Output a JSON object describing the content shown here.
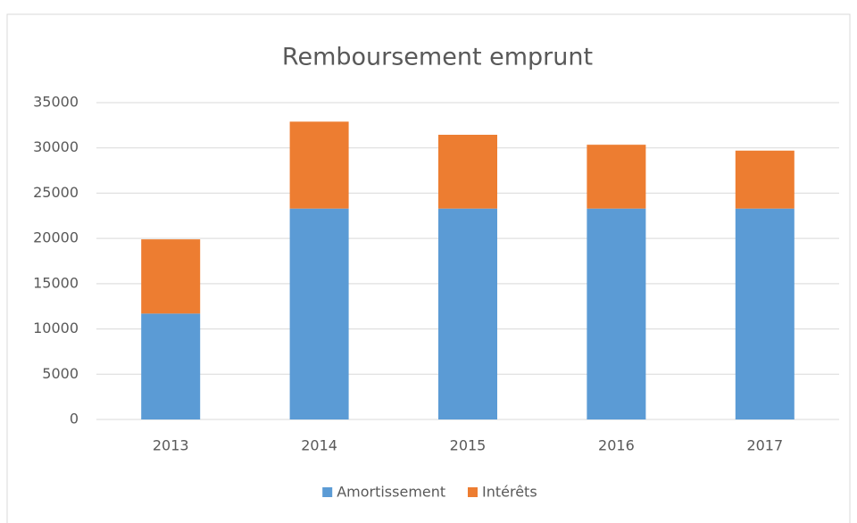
{
  "chart_data": {
    "type": "stacked_bar",
    "title": "Remboursement emprunt",
    "categories": [
      "2013",
      "2014",
      "2015",
      "2016",
      "2017"
    ],
    "series": [
      {
        "name": "Amortissement",
        "color": "#5b9bd5",
        "values": [
          11700,
          23300,
          23300,
          23300,
          23300
        ]
      },
      {
        "name": "Intérêts",
        "color": "#ed7d31",
        "values": [
          8200,
          9600,
          8150,
          7050,
          6400
        ]
      }
    ],
    "ylim": [
      0,
      35000
    ],
    "yticks": [
      0,
      5000,
      10000,
      15000,
      20000,
      25000,
      30000,
      35000
    ],
    "grid": true,
    "legend": "bottom"
  }
}
